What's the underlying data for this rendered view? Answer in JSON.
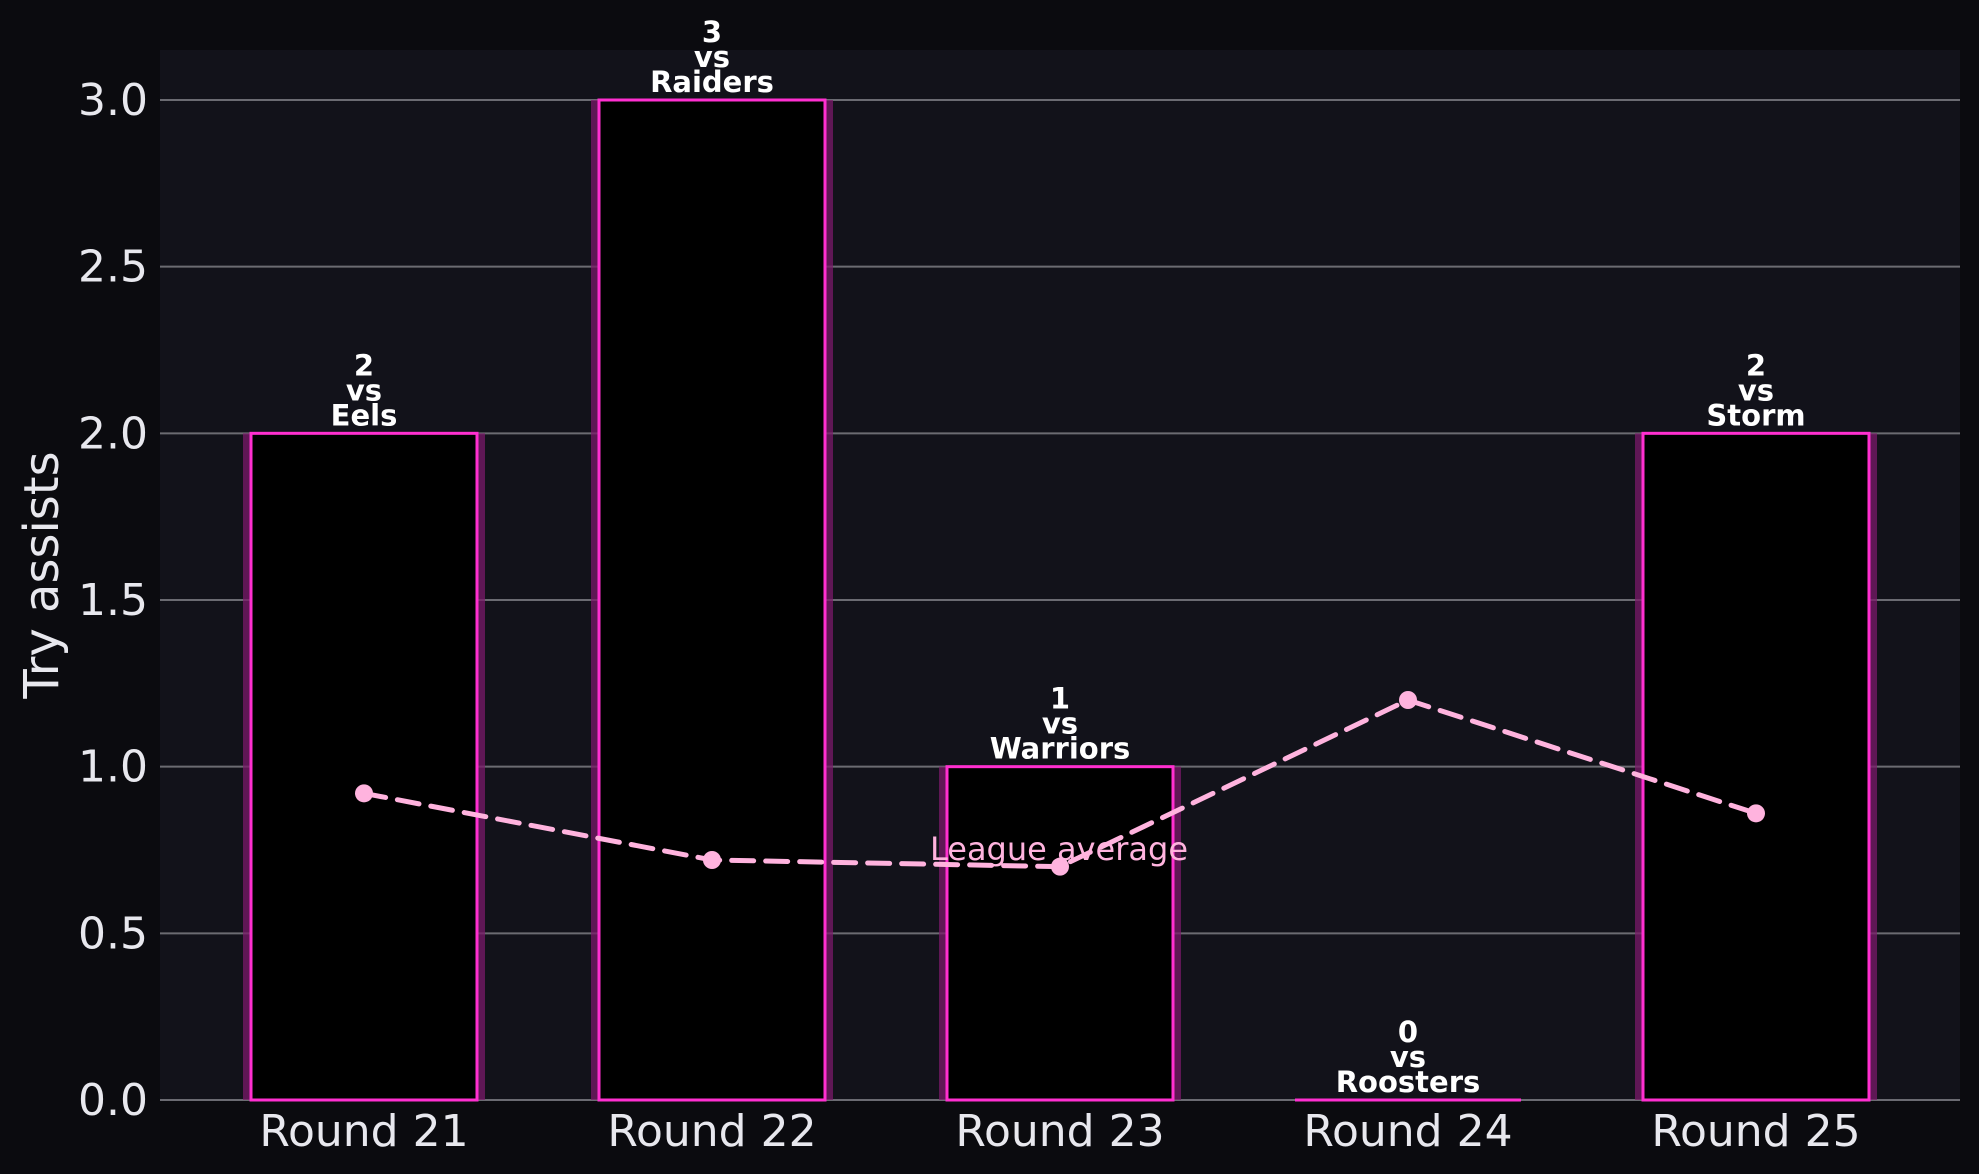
{
  "chart_data": {
    "type": "bar",
    "categories": [
      "Round 21",
      "Round 22",
      "Round 23",
      "Round 24",
      "Round 25"
    ],
    "values": [
      2,
      3,
      1,
      0,
      2
    ],
    "opponents": [
      "Eels",
      "Raiders",
      "Warriors",
      "Roosters",
      "Storm"
    ],
    "bar_labels": [
      [
        "2",
        "vs",
        "Eels"
      ],
      [
        "3",
        "vs",
        "Raiders"
      ],
      [
        "1",
        "vs",
        "Warriors"
      ],
      [
        "0",
        "vs",
        "Roosters"
      ],
      [
        "2",
        "vs",
        "Storm"
      ]
    ],
    "series": [
      {
        "values": [
          2,
          3,
          1,
          0,
          2
        ]
      },
      {
        "name": "League average",
        "values": [
          0.92,
          0.72,
          0.7,
          1.2,
          0.86
        ],
        "style": "dashed-line-with-markers"
      }
    ],
    "annotation": "League average",
    "ylabel": "Try assists",
    "xlabel": "",
    "ylim": [
      0,
      3.15
    ],
    "yticks": [
      "0.0",
      "0.5",
      "1.0",
      "1.5",
      "2.0",
      "2.5",
      "3.0"
    ],
    "grid": "horizontal",
    "colors": {
      "background": "#0b0b0f",
      "plot_background": "#12121a",
      "bar_fill": "#000000",
      "bar_edge": "#ff2fd0",
      "bar_glow": "#7a1a6a",
      "average_line": "#ffb3de",
      "grid": "#6b6b72",
      "text": "#e8e8ee"
    }
  }
}
